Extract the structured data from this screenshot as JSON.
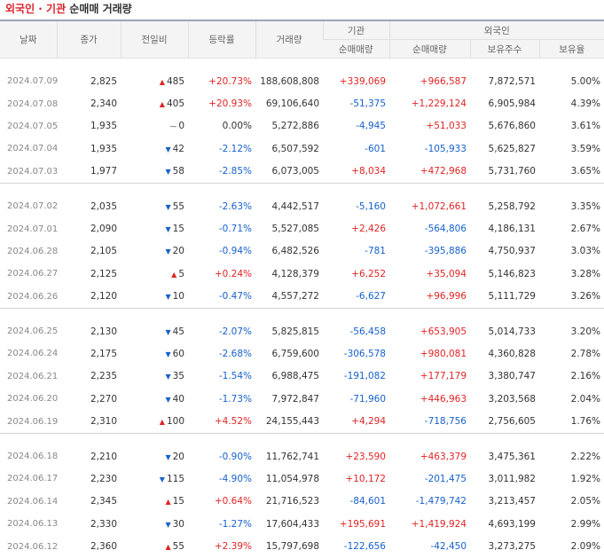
{
  "title": {
    "part1": "외국인 · 기관",
    "part2": " 순매매 거래량"
  },
  "headers": {
    "date": "날짜",
    "close": "종가",
    "change": "전일비",
    "rate": "등락률",
    "volume": "거래량",
    "inst_group": "기관",
    "foreign_group": "외국인",
    "inst_net": "순매매량",
    "foreign_net": "순매매량",
    "foreign_hold": "보유주수",
    "foreign_ratio": "보유율"
  },
  "rows": [
    {
      "date": "2024.07.09",
      "close": "2,825",
      "dir": "up",
      "change": "485",
      "rate": "+20.73%",
      "volume": "188,608,808",
      "inst": "+339,069",
      "foreign": "+966,587",
      "hold": "7,872,571",
      "ratio": "5.00%"
    },
    {
      "date": "2024.07.08",
      "close": "2,340",
      "dir": "up",
      "change": "405",
      "rate": "+20.93%",
      "volume": "69,106,640",
      "inst": "-51,375",
      "foreign": "+1,229,124",
      "hold": "6,905,984",
      "ratio": "4.39%"
    },
    {
      "date": "2024.07.05",
      "close": "1,935",
      "dir": "flat",
      "change": "0",
      "rate": "0.00%",
      "volume": "5,272,886",
      "inst": "-4,945",
      "foreign": "+51,033",
      "hold": "5,676,860",
      "ratio": "3.61%"
    },
    {
      "date": "2024.07.04",
      "close": "1,935",
      "dir": "dn",
      "change": "42",
      "rate": "-2.12%",
      "volume": "6,507,592",
      "inst": "-601",
      "foreign": "-105,933",
      "hold": "5,625,827",
      "ratio": "3.59%"
    },
    {
      "date": "2024.07.03",
      "close": "1,977",
      "dir": "dn",
      "change": "58",
      "rate": "-2.85%",
      "volume": "6,073,005",
      "inst": "+8,034",
      "foreign": "+472,968",
      "hold": "5,731,760",
      "ratio": "3.65%"
    },
    {
      "date": "2024.07.02",
      "close": "2,035",
      "dir": "dn",
      "change": "55",
      "rate": "-2.63%",
      "volume": "4,442,517",
      "inst": "-5,160",
      "foreign": "+1,072,661",
      "hold": "5,258,792",
      "ratio": "3.35%"
    },
    {
      "date": "2024.07.01",
      "close": "2,090",
      "dir": "dn",
      "change": "15",
      "rate": "-0.71%",
      "volume": "5,527,085",
      "inst": "+2,426",
      "foreign": "-564,806",
      "hold": "4,186,131",
      "ratio": "2.67%"
    },
    {
      "date": "2024.06.28",
      "close": "2,105",
      "dir": "dn",
      "change": "20",
      "rate": "-0.94%",
      "volume": "6,482,526",
      "inst": "-781",
      "foreign": "-395,886",
      "hold": "4,750,937",
      "ratio": "3.03%"
    },
    {
      "date": "2024.06.27",
      "close": "2,125",
      "dir": "up",
      "change": "5",
      "rate": "+0.24%",
      "volume": "4,128,379",
      "inst": "+6,252",
      "foreign": "+35,094",
      "hold": "5,146,823",
      "ratio": "3.28%"
    },
    {
      "date": "2024.06.26",
      "close": "2,120",
      "dir": "dn",
      "change": "10",
      "rate": "-0.47%",
      "volume": "4,557,272",
      "inst": "-6,627",
      "foreign": "+96,996",
      "hold": "5,111,729",
      "ratio": "3.26%"
    },
    {
      "date": "2024.06.25",
      "close": "2,130",
      "dir": "dn",
      "change": "45",
      "rate": "-2.07%",
      "volume": "5,825,815",
      "inst": "-56,458",
      "foreign": "+653,905",
      "hold": "5,014,733",
      "ratio": "3.20%"
    },
    {
      "date": "2024.06.24",
      "close": "2,175",
      "dir": "dn",
      "change": "60",
      "rate": "-2.68%",
      "volume": "6,759,600",
      "inst": "-306,578",
      "foreign": "+980,081",
      "hold": "4,360,828",
      "ratio": "2.78%"
    },
    {
      "date": "2024.06.21",
      "close": "2,235",
      "dir": "dn",
      "change": "35",
      "rate": "-1.54%",
      "volume": "6,988,475",
      "inst": "-191,082",
      "foreign": "+177,179",
      "hold": "3,380,747",
      "ratio": "2.16%"
    },
    {
      "date": "2024.06.20",
      "close": "2,270",
      "dir": "dn",
      "change": "40",
      "rate": "-1.73%",
      "volume": "7,972,847",
      "inst": "-71,960",
      "foreign": "+446,963",
      "hold": "3,203,568",
      "ratio": "2.04%"
    },
    {
      "date": "2024.06.19",
      "close": "2,310",
      "dir": "up",
      "change": "100",
      "rate": "+4.52%",
      "volume": "24,155,443",
      "inst": "+4,294",
      "foreign": "-718,756",
      "hold": "2,756,605",
      "ratio": "1.76%"
    },
    {
      "date": "2024.06.18",
      "close": "2,210",
      "dir": "dn",
      "change": "20",
      "rate": "-0.90%",
      "volume": "11,762,741",
      "inst": "+23,590",
      "foreign": "+463,379",
      "hold": "3,475,361",
      "ratio": "2.22%"
    },
    {
      "date": "2024.06.17",
      "close": "2,230",
      "dir": "dn",
      "change": "115",
      "rate": "-4.90%",
      "volume": "11,054,978",
      "inst": "+10,172",
      "foreign": "-201,475",
      "hold": "3,011,982",
      "ratio": "1.92%"
    },
    {
      "date": "2024.06.14",
      "close": "2,345",
      "dir": "up",
      "change": "15",
      "rate": "+0.64%",
      "volume": "21,716,523",
      "inst": "-84,601",
      "foreign": "-1,479,742",
      "hold": "3,213,457",
      "ratio": "2.05%"
    },
    {
      "date": "2024.06.13",
      "close": "2,330",
      "dir": "dn",
      "change": "30",
      "rate": "-1.27%",
      "volume": "17,604,433",
      "inst": "+195,691",
      "foreign": "+1,419,924",
      "hold": "4,693,199",
      "ratio": "2.99%"
    },
    {
      "date": "2024.06.12",
      "close": "2,360",
      "dir": "up",
      "change": "55",
      "rate": "+2.39%",
      "volume": "15,797,698",
      "inst": "-122,656",
      "foreign": "-42,450",
      "hold": "3,273,275",
      "ratio": "2.09%"
    }
  ],
  "colors": {
    "up": "#e02424",
    "down": "#1761cc",
    "title_accent": "#d8242a"
  },
  "icons": {
    "up": "up-triangle-icon",
    "down": "down-triangle-icon",
    "flat": "dash-icon"
  }
}
